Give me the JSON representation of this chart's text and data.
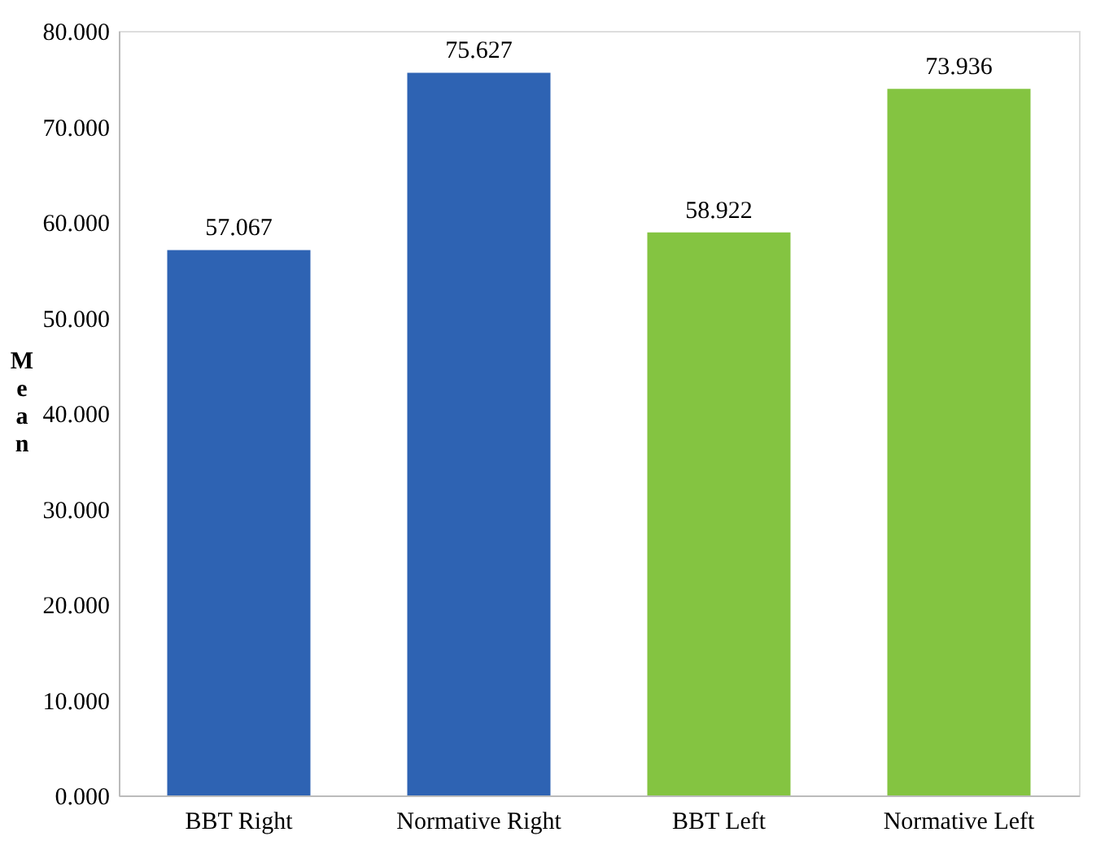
{
  "chart_data": {
    "type": "bar",
    "ylabel": "Mean",
    "categories": [
      "BBT Right",
      "Normative Right",
      "BBT Left",
      "Normative Left"
    ],
    "values": [
      57.067,
      75.627,
      58.922,
      73.936
    ],
    "colors": [
      "#2e63b3",
      "#2e63b3",
      "#84c441",
      "#84c441"
    ],
    "ylim": [
      0,
      80
    ],
    "yticks": [
      {
        "value": 0,
        "label": "0.000"
      },
      {
        "value": 10,
        "label": "10.000"
      },
      {
        "value": 20,
        "label": "20.000"
      },
      {
        "value": 30,
        "label": "30.000"
      },
      {
        "value": 40,
        "label": "40.000"
      },
      {
        "value": 50,
        "label": "50.000"
      },
      {
        "value": 60,
        "label": "60.000"
      },
      {
        "value": 70,
        "label": "70.000"
      },
      {
        "value": 80,
        "label": "80.000"
      }
    ],
    "data_labels": true,
    "grid": false
  }
}
